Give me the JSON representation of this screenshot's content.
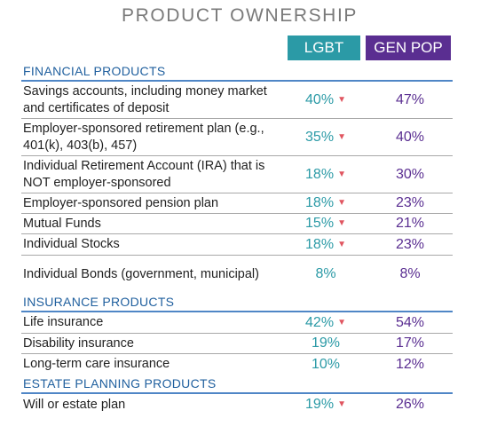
{
  "title": "PRODUCT OWNERSHIP",
  "columns": {
    "lgbt": "LGBT",
    "gen_pop": "GEN POP"
  },
  "colors": {
    "lgbt": "#2b9aa6",
    "gen_pop": "#5a2e91",
    "section": "#1f5f9e",
    "arrow": "#e05560"
  },
  "chart_data": {
    "type": "table",
    "title": "PRODUCT OWNERSHIP",
    "series": [
      {
        "name": "LGBT",
        "color": "#2b9aa6"
      },
      {
        "name": "GEN POP",
        "color": "#5a2e91"
      }
    ],
    "sections": [
      {
        "name": "FINANCIAL PRODUCTS",
        "rows": [
          {
            "label": "Savings accounts, including money market and certificates of deposit",
            "lgbt": "40%",
            "gen_pop": "47%",
            "lower": true
          },
          {
            "label": "Employer-sponsored retirement plan (e.g., 401(k), 403(b), 457)",
            "lgbt": "35%",
            "gen_pop": "40%",
            "lower": true
          },
          {
            "label": "Individual Retirement Account (IRA) that is NOT employer-sponsored",
            "lgbt": "18%",
            "gen_pop": "30%",
            "lower": true
          },
          {
            "label": "Employer-sponsored pension plan",
            "lgbt": "18%",
            "gen_pop": "23%",
            "lower": true
          },
          {
            "label": "Mutual Funds",
            "lgbt": "15%",
            "gen_pop": "21%",
            "lower": true
          },
          {
            "label": "Individual Stocks",
            "lgbt": "18%",
            "gen_pop": "23%",
            "lower": true
          },
          {
            "label": "Individual Bonds (government, municipal)",
            "lgbt": "8%",
            "gen_pop": "8%",
            "lower": false
          }
        ]
      },
      {
        "name": "INSURANCE PRODUCTS",
        "rows": [
          {
            "label": "Life insurance",
            "lgbt": "42%",
            "gen_pop": "54%",
            "lower": true
          },
          {
            "label": "Disability insurance",
            "lgbt": "19%",
            "gen_pop": "17%",
            "lower": false
          },
          {
            "label": "Long-term care insurance",
            "lgbt": "10%",
            "gen_pop": "12%",
            "lower": false
          }
        ]
      },
      {
        "name": "ESTATE PLANNING PRODUCTS",
        "rows": [
          {
            "label": "Will or estate plan",
            "lgbt": "19%",
            "gen_pop": "26%",
            "lower": true
          }
        ]
      }
    ]
  }
}
